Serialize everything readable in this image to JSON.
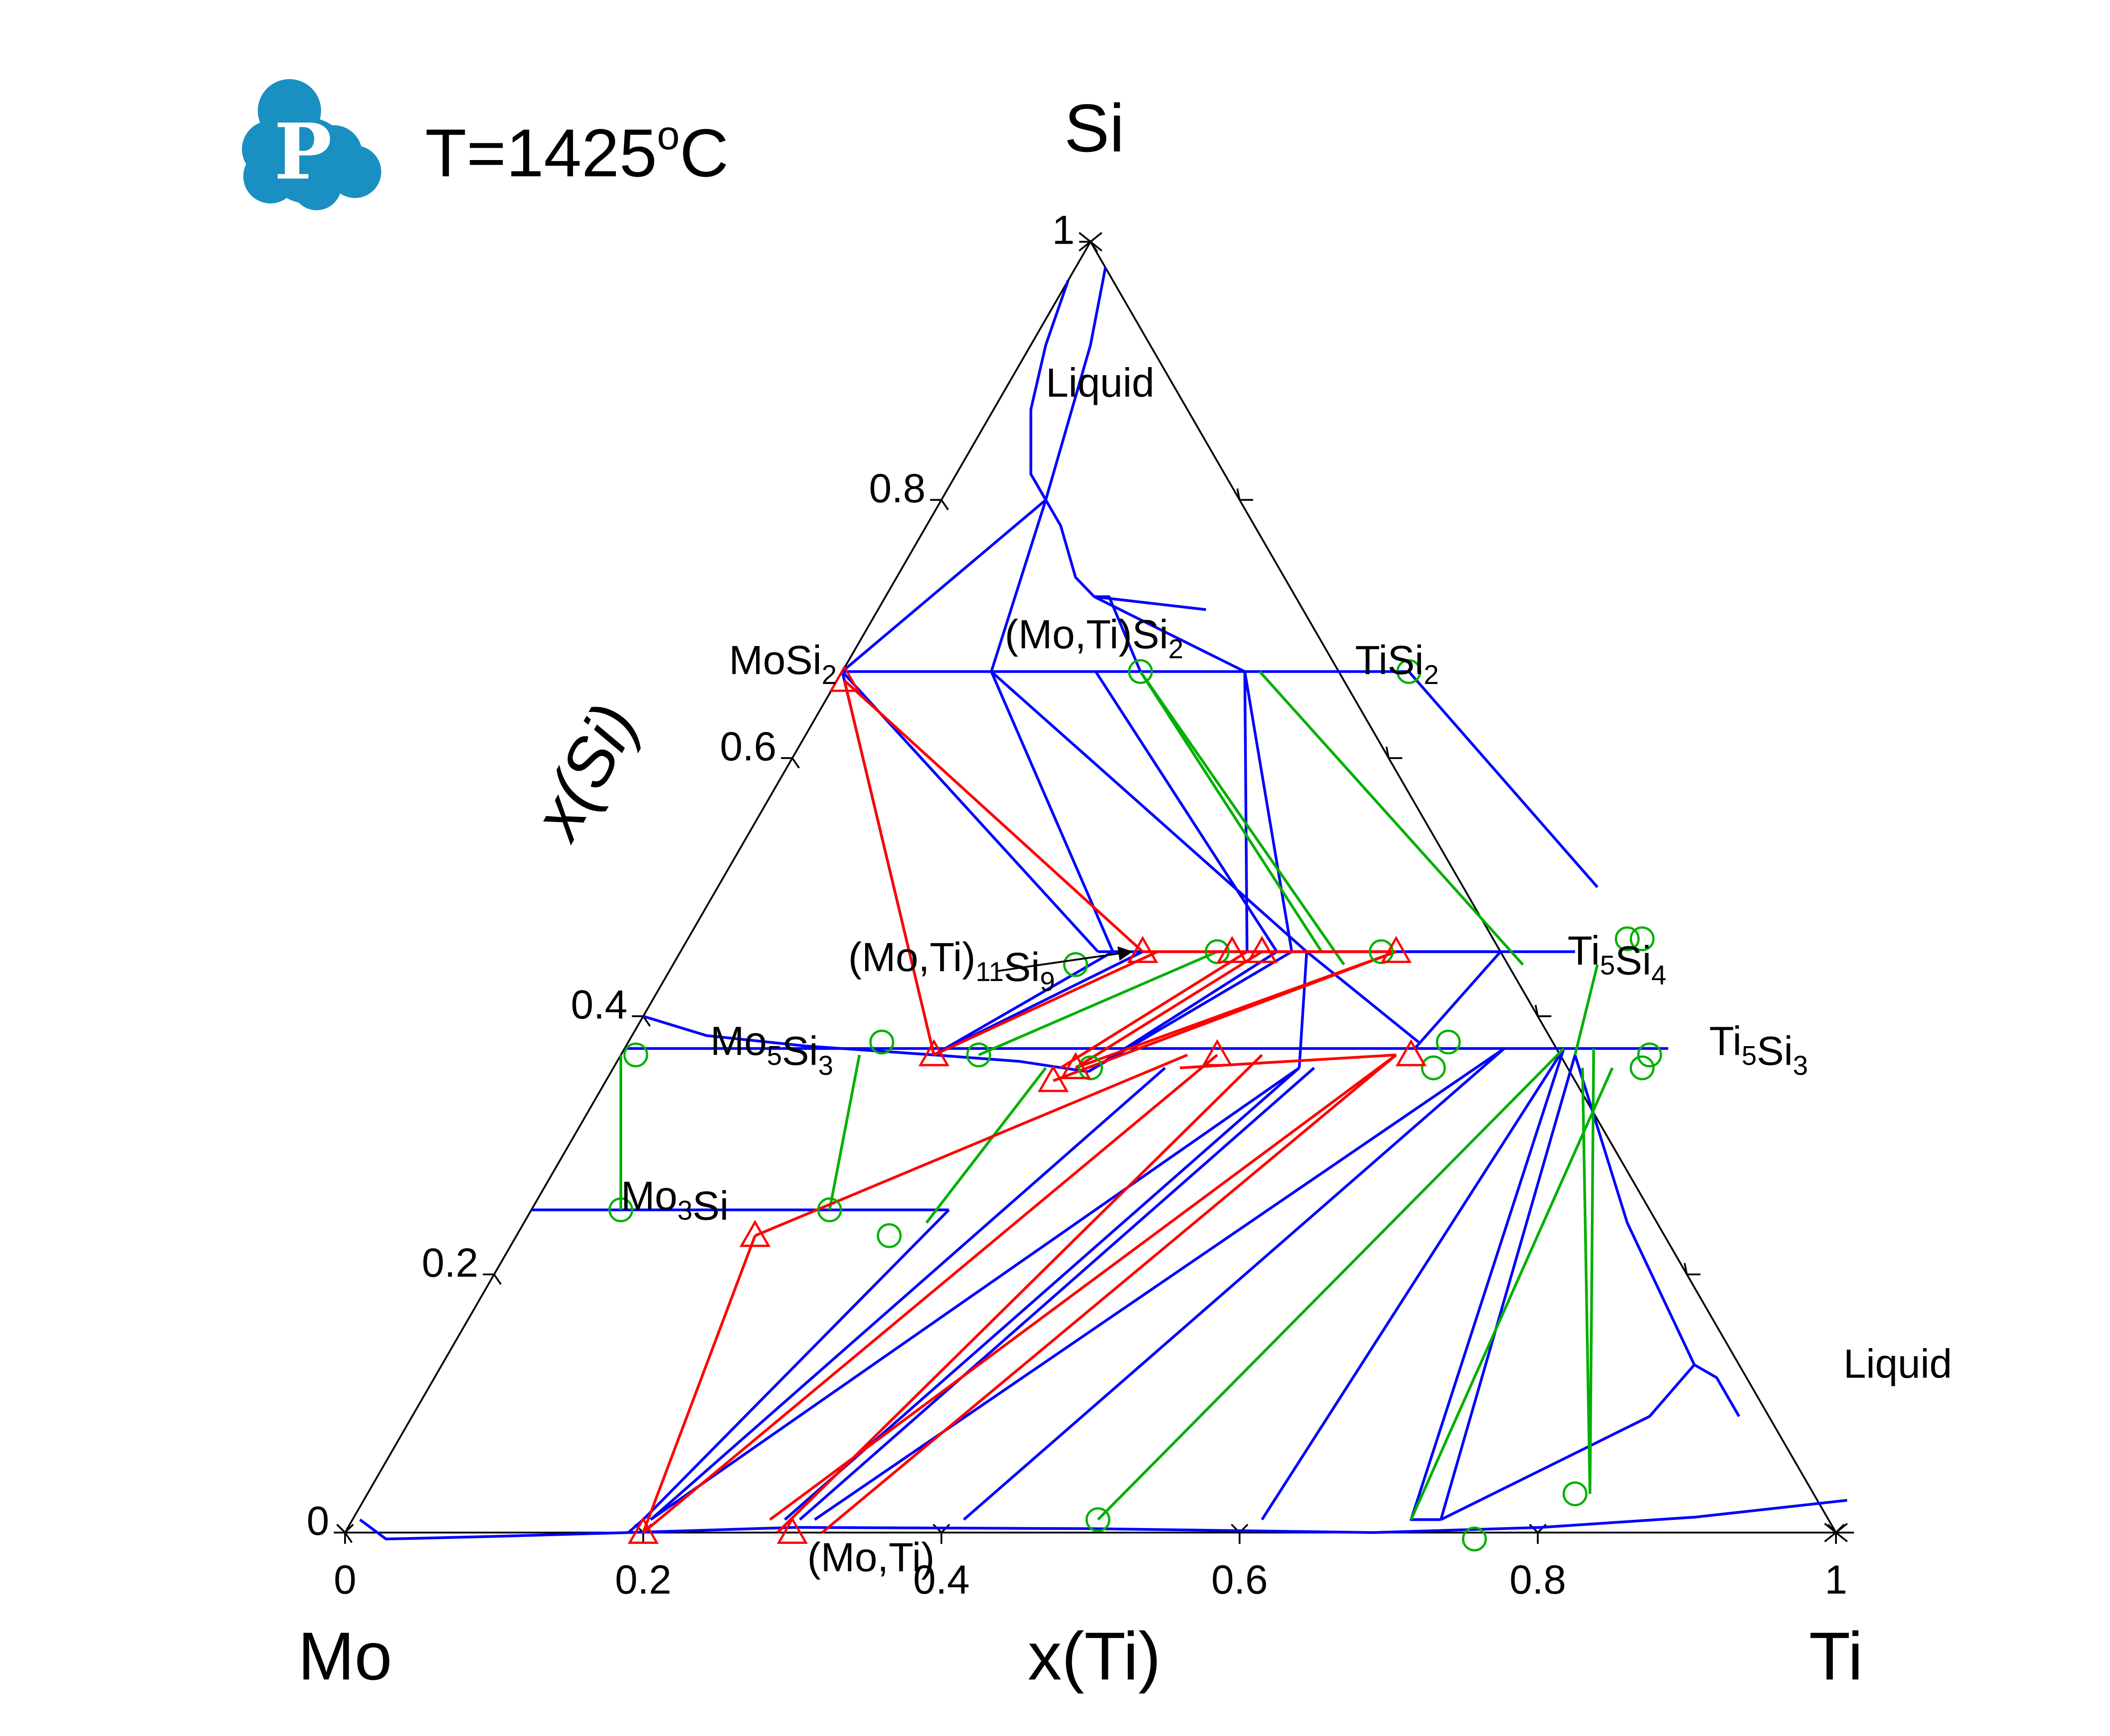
{
  "header": {
    "logo_letter": "P",
    "temperature_label": "T=1425",
    "temperature_superscript": "o",
    "temperature_unit": "C"
  },
  "colors": {
    "phase_boundary": "#0000ff",
    "tie_line": "#00b000",
    "experiment": "#ff0000",
    "frame": "#000000",
    "logo": "#1a8fc2"
  },
  "icons": {
    "logo": "computherm-p-cloud-icon",
    "arrow": "arrow-right-icon"
  },
  "chart_data": {
    "type": "ternary",
    "vertices": {
      "bottom_left": "Mo",
      "bottom_right": "Ti",
      "top": "Si"
    },
    "axes": {
      "bottom": {
        "label": "x(Ti)",
        "range": [
          0,
          1
        ],
        "ticks": [
          "0",
          "0.2",
          "0.4",
          "0.6",
          "0.8",
          "1"
        ]
      },
      "left": {
        "label": "x(Si)",
        "range": [
          0,
          1
        ],
        "ticks": [
          "0",
          "0.2",
          "0.4",
          "0.6",
          "0.8",
          "1"
        ]
      },
      "right": {
        "ticks": [
          0.2,
          0.4,
          0.6,
          0.8
        ]
      }
    },
    "phase_labels": [
      {
        "id": "liquid-si",
        "text": "Liquid",
        "ti": 0.03,
        "si": 0.88
      },
      {
        "id": "mosi2",
        "text": "MoSi",
        "sub": "2",
        "ti": -0.075,
        "si": 0.665
      },
      {
        "id": "motisi2",
        "text": "(Mo,Ti)Si",
        "sub": "2",
        "ti": 0.1,
        "si": 0.685
      },
      {
        "id": "tisi2",
        "text": "TiSi",
        "sub": "2",
        "ti": 0.345,
        "si": 0.665
      },
      {
        "id": "moti11si9",
        "text": "(Mo,Ti)",
        "sub": "11",
        "text2": "Si",
        "sub2": "9",
        "ti": 0.12,
        "si": 0.435
      },
      {
        "id": "ti5si4",
        "text": "Ti",
        "sub": "5",
        "text2": "Si",
        "sub2": "4",
        "ti": 0.6,
        "si": 0.44
      },
      {
        "id": "mo5si3",
        "text": "Mo",
        "sub": "5",
        "text2": "Si",
        "sub2": "3",
        "ti": 0.06,
        "si": 0.37
      },
      {
        "id": "ti5si3",
        "text": "Ti",
        "sub": "5",
        "text2": "Si",
        "sub2": "3",
        "ti": 0.73,
        "si": 0.37
      },
      {
        "id": "mo3si",
        "text": "Mo",
        "sub": "3",
        "text2": "Si",
        "ti": 0.06,
        "si": 0.25
      },
      {
        "id": "liquid-ti",
        "text": "Liquid",
        "ti": 0.945,
        "si": 0.12
      },
      {
        "id": "moti",
        "text": "(Mo,Ti)",
        "ti": 0.325,
        "si": -0.03
      }
    ],
    "series": [
      {
        "kind": "boundary",
        "lines": [
          [
            [
              0.0,
              0.97
            ],
            [
              0.01,
              0.92
            ],
            [
              0.025,
              0.87
            ],
            [
              0.05,
              0.82
            ],
            [
              0.07,
              0.8
            ]
          ],
          [
            [
              0.07,
              0.8
            ],
            [
              0.09,
              0.78
            ],
            [
              0.12,
              0.74
            ],
            [
              0.14,
              0.725
            ]
          ],
          [
            [
              0.14,
              0.725
            ],
            [
              0.18,
              0.72
            ],
            [
              0.22,
              0.715
            ]
          ],
          [
            [
              0.02,
              0.98
            ],
            [
              0.04,
              0.92
            ],
            [
              0.07,
              0.8
            ]
          ],
          [
            [
              0.0,
              0.667
            ],
            [
              0.07,
              0.8
            ]
          ],
          [
            [
              0.1,
              0.667
            ],
            [
              0.07,
              0.8
            ]
          ],
          [
            [
              0.0,
              0.667
            ],
            [
              0.38,
              0.667
            ]
          ],
          [
            [
              0.2,
              0.667
            ],
            [
              0.15,
              0.725
            ],
            [
              0.14,
              0.725
            ]
          ],
          [
            [
              0.27,
              0.667
            ],
            [
              0.14,
              0.725
            ]
          ],
          [
            [
              0.27,
              0.667
            ],
            [
              0.38,
              0.45
            ]
          ],
          [
            [
              0.38,
              0.667
            ],
            [
              0.59,
              0.5
            ]
          ],
          [
            [
              0.0,
              0.667
            ],
            [
              0.21,
              0.37
            ]
          ],
          [
            [
              0.0,
              0.667
            ],
            [
              0.28,
              0.45
            ]
          ],
          [
            [
              0.1,
              0.667
            ],
            [
              0.29,
              0.45
            ]
          ],
          [
            [
              0.1,
              0.667
            ],
            [
              0.42,
              0.45
            ]
          ],
          [
            [
              0.17,
              0.667
            ],
            [
              0.4,
              0.45
            ]
          ],
          [
            [
              0.27,
              0.667
            ],
            [
              0.41,
              0.45
            ]
          ],
          [
            [
              0.28,
              0.45
            ],
            [
              0.6,
              0.45
            ]
          ],
          [
            [
              0.36,
              0.45
            ],
            [
              0.55,
              0.45
            ]
          ],
          [
            [
              0.21,
              0.37
            ],
            [
              0.29,
              0.45
            ]
          ],
          [
            [
              0.21,
              0.37
            ],
            [
              0.31,
              0.45
            ]
          ],
          [
            [
              0.0,
              0.4
            ],
            [
              0.05,
              0.385
            ],
            [
              0.12,
              0.377
            ],
            [
              0.21,
              0.37
            ],
            [
              0.27,
              0.365
            ],
            [
              0.32,
              0.357
            ]
          ],
          [
            [
              0.0,
              0.375
            ],
            [
              0.18,
              0.375
            ],
            [
              0.36,
              0.375
            ],
            [
              0.55,
              0.375
            ],
            [
              0.63,
              0.375
            ],
            [
              0.7,
              0.375
            ]
          ],
          [
            [
              0.32,
              0.357
            ],
            [
              0.41,
              0.45
            ]
          ],
          [
            [
              0.32,
              0.357
            ],
            [
              0.4,
              0.45
            ]
          ],
          [
            [
              0.42,
              0.45
            ],
            [
              0.46,
              0.36
            ]
          ],
          [
            [
              0.42,
              0.45
            ],
            [
              0.53,
              0.38
            ]
          ],
          [
            [
              0.55,
              0.45
            ],
            [
              0.53,
              0.375
            ]
          ],
          [
            [
              0.0,
              0.25
            ],
            [
              0.2,
              0.25
            ],
            [
              0.28,
              0.25
            ]
          ],
          [
            [
              0.28,
              0.25
            ],
            [
              0.195,
              0.01
            ],
            [
              0.19,
              0.0
            ]
          ],
          [
            [
              0.46,
              0.36
            ],
            [
              0.2,
              0.01
            ]
          ],
          [
            [
              0.37,
              0.36
            ],
            [
              0.2,
              0.01
            ]
          ],
          [
            [
              0.46,
              0.36
            ],
            [
              0.29,
              0.01
            ]
          ],
          [
            [
              0.47,
              0.36
            ],
            [
              0.3,
              0.01
            ]
          ],
          [
            [
              0.59,
              0.375
            ],
            [
              0.31,
              0.01
            ]
          ],
          [
            [
              0.59,
              0.375
            ],
            [
              0.41,
              0.01
            ]
          ],
          [
            [
              0.63,
              0.375
            ],
            [
              0.61,
              0.01
            ]
          ],
          [
            [
              0.63,
              0.375
            ],
            [
              0.71,
              0.01
            ],
            [
              0.73,
              0.01
            ]
          ],
          [
            [
              0.64,
              0.37
            ],
            [
              0.73,
              0.01
            ]
          ],
          [
            [
              0.73,
              0.01
            ],
            [
              0.83,
              0.09
            ],
            [
              0.84,
              0.13
            ]
          ],
          [
            [
              0.84,
              0.13
            ],
            [
              0.86,
              0.12
            ],
            [
              0.89,
              0.09
            ]
          ],
          [
            [
              0.64,
              0.37
            ],
            [
              0.74,
              0.24
            ],
            [
              0.84,
              0.13
            ]
          ],
          [
            [
              0.005,
              0.01
            ],
            [
              0.03,
              -0.005
            ],
            [
              0.1,
              -0.003
            ],
            [
              0.19,
              0.0
            ],
            [
              0.3,
              0.004
            ],
            [
              0.5,
              0.003
            ],
            [
              0.69,
              0.0
            ],
            [
              0.8,
              0.004
            ],
            [
              0.9,
              0.012
            ],
            [
              0.995,
              0.025
            ]
          ]
        ]
      },
      {
        "kind": "tie-line",
        "lines": [
          [
            [
              0.2,
              0.667
            ],
            [
              0.45,
              0.44
            ]
          ],
          [
            [
              0.2,
              0.667
            ],
            [
              0.43,
              0.45
            ]
          ],
          [
            [
              0.28,
              0.667
            ],
            [
              0.57,
              0.44
            ]
          ],
          [
            [
              0.0,
              0.37
            ],
            [
              0.06,
              0.25
            ]
          ],
          [
            [
              0.16,
              0.37
            ],
            [
              0.2,
              0.25
            ]
          ],
          [
            [
              0.29,
              0.36
            ],
            [
              0.27,
              0.24
            ]
          ],
          [
            [
              0.36,
              0.45
            ],
            [
              0.24,
              0.37
            ]
          ],
          [
            [
              0.63,
              0.375
            ],
            [
              0.5,
              0.01
            ]
          ],
          [
            [
              0.62,
              0.44
            ],
            [
              0.64,
              0.37
            ]
          ],
          [
            [
              0.67,
              0.36
            ],
            [
              0.71,
              0.01
            ]
          ],
          [
            [
              0.65,
              0.36
            ],
            [
              0.82,
              0.03
            ]
          ],
          [
            [
              0.65,
              0.375
            ],
            [
              0.82,
              0.03
            ]
          ]
        ]
      },
      {
        "kind": "experiment",
        "lines": [
          [
            [
              0.005,
              0.66
            ],
            [
              0.21,
              0.37
            ]
          ],
          [
            [
              0.005,
              0.66
            ],
            [
              0.31,
              0.45
            ]
          ],
          [
            [
              0.21,
              0.37
            ],
            [
              0.32,
              0.45
            ]
          ],
          [
            [
              0.31,
              0.45
            ],
            [
              0.48,
              0.45
            ]
          ],
          [
            [
              0.38,
              0.45
            ],
            [
              0.3,
              0.36
            ]
          ],
          [
            [
              0.31,
              0.36
            ],
            [
              0.39,
              0.45
            ]
          ],
          [
            [
              0.48,
              0.45
            ],
            [
              0.3,
              0.35
            ]
          ],
          [
            [
              0.48,
              0.45
            ],
            [
              0.31,
              0.36
            ]
          ],
          [
            [
              0.38,
              0.36
            ],
            [
              0.52,
              0.37
            ]
          ],
          [
            [
              0.52,
              0.37
            ],
            [
              0.28,
              0.01
            ]
          ],
          [
            [
              0.52,
              0.37
            ],
            [
              0.32,
              0.0
            ]
          ],
          [
            [
              0.4,
              0.37
            ],
            [
              0.2,
              0.0
            ]
          ],
          [
            [
              0.38,
              0.37
            ],
            [
              0.16,
              0.23
            ]
          ],
          [
            [
              0.16,
              0.23
            ],
            [
              0.2,
              0.0
            ]
          ],
          [
            [
              0.43,
              0.37
            ],
            [
              0.29,
              0.0
            ]
          ]
        ]
      }
    ],
    "markers": {
      "circles": [
        [
          0.2,
          0.667
        ],
        [
          0.38,
          0.667
        ],
        [
          0.47,
          0.45
        ],
        [
          0.27,
          0.44
        ],
        [
          0.64,
          0.46
        ],
        [
          0.36,
          0.45
        ],
        [
          0.63,
          0.46
        ],
        [
          0.01,
          0.37
        ],
        [
          0.17,
          0.38
        ],
        [
          0.32,
          0.36
        ],
        [
          0.24,
          0.37
        ],
        [
          0.55,
          0.38
        ],
        [
          0.55,
          0.36
        ],
        [
          0.06,
          0.25
        ],
        [
          0.2,
          0.25
        ],
        [
          0.25,
          0.23
        ],
        [
          0.5,
          0.01
        ],
        [
          0.76,
          -0.005
        ],
        [
          0.69,
          0.37
        ],
        [
          0.69,
          0.36
        ],
        [
          0.81,
          0.03
        ]
      ],
      "triangles": [
        [
          0.005,
          0.66
        ],
        [
          0.21,
          0.37
        ],
        [
          0.31,
          0.45
        ],
        [
          0.37,
          0.45
        ],
        [
          0.48,
          0.45
        ],
        [
          0.31,
          0.36
        ],
        [
          0.3,
          0.35
        ],
        [
          0.4,
          0.37
        ],
        [
          0.53,
          0.37
        ],
        [
          0.16,
          0.23
        ],
        [
          0.2,
          0.0
        ],
        [
          0.3,
          0.0
        ],
        [
          0.39,
          0.45
        ]
      ]
    },
    "arrow": {
      "from": [
        0.22,
        0.435
      ],
      "to": [
        0.31,
        0.45
      ]
    }
  }
}
